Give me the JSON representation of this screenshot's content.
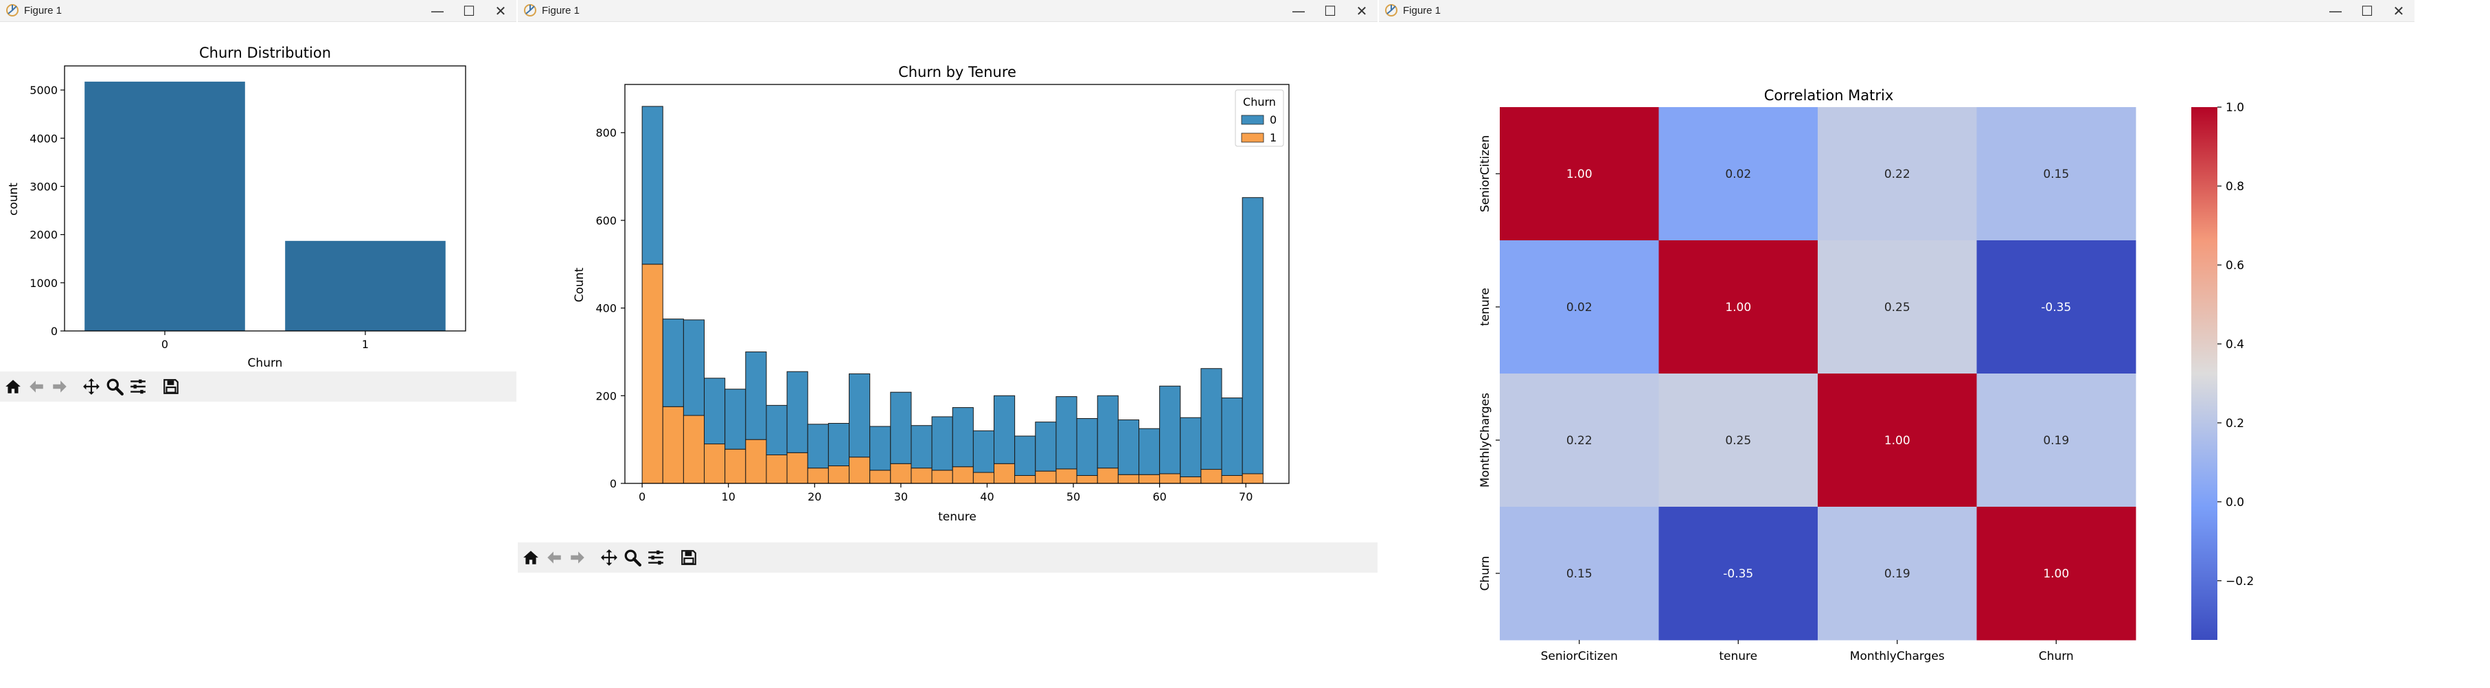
{
  "windows": [
    {
      "title": "Figure 1",
      "controls": {
        "minimize": "—",
        "maximize": "☐",
        "close": "✕"
      }
    },
    {
      "title": "Figure 1",
      "controls": {
        "minimize": "—",
        "maximize": "☐",
        "close": "✕"
      }
    },
    {
      "title": "Figure 1",
      "controls": {
        "minimize": "—",
        "maximize": "☐",
        "close": "✕"
      }
    }
  ],
  "toolbar_icons": [
    "home-icon",
    "back-arrow-icon",
    "forward-arrow-icon",
    "pan-icon",
    "zoom-icon",
    "configure-subplots-icon",
    "save-icon"
  ],
  "colors": {
    "bar_blue": "#2e6f9d",
    "hist_blue": "#3f8fbf",
    "hist_orange": "#f8a04c"
  },
  "chart_data": [
    {
      "type": "bar",
      "title": "Churn Distribution",
      "xlabel": "Churn",
      "ylabel": "count",
      "categories": [
        "0",
        "1"
      ],
      "values": [
        5174,
        1869
      ],
      "ylim": [
        0,
        5500
      ],
      "yticks": [
        0,
        1000,
        2000,
        3000,
        4000,
        5000
      ]
    },
    {
      "type": "bar",
      "stacked": true,
      "title": "Churn by Tenure",
      "xlabel": "tenure",
      "ylabel": "Count",
      "legend_title": "Churn",
      "legend_position": "top-right",
      "xlim": [
        -2,
        75
      ],
      "ylim": [
        0,
        910
      ],
      "xticks": [
        0,
        10,
        20,
        30,
        40,
        50,
        60,
        70
      ],
      "yticks": [
        0,
        200,
        400,
        600,
        800
      ],
      "bin_start": 0,
      "bin_width": 2.4,
      "series": [
        {
          "name": "1",
          "values": [
            500,
            175,
            155,
            90,
            78,
            100,
            65,
            70,
            35,
            40,
            60,
            30,
            45,
            35,
            30,
            38,
            25,
            45,
            18,
            28,
            33,
            18,
            35,
            20,
            20,
            22,
            15,
            32,
            18,
            22
          ]
        },
        {
          "name": "0",
          "values": [
            360,
            200,
            218,
            150,
            137,
            200,
            113,
            185,
            100,
            97,
            190,
            100,
            163,
            97,
            122,
            135,
            95,
            155,
            90,
            112,
            165,
            130,
            165,
            125,
            105,
            200,
            135,
            230,
            177,
            630
          ]
        }
      ]
    },
    {
      "type": "heatmap",
      "title": "Correlation Matrix",
      "xlabels": [
        "SeniorCitizen",
        "tenure",
        "MonthlyCharges",
        "Churn"
      ],
      "ylabels": [
        "SeniorCitizen",
        "tenure",
        "MonthlyCharges",
        "Churn"
      ],
      "values": [
        [
          1.0,
          0.02,
          0.22,
          0.15
        ],
        [
          0.02,
          1.0,
          0.25,
          -0.35
        ],
        [
          0.22,
          0.25,
          1.0,
          0.19
        ],
        [
          0.15,
          -0.35,
          0.19,
          1.0
        ]
      ],
      "labels": [
        [
          "1.00",
          "0.02",
          "0.22",
          "0.15"
        ],
        [
          "0.02",
          "1.00",
          "0.25",
          "-0.35"
        ],
        [
          "0.22",
          "0.25",
          "1.00",
          "0.19"
        ],
        [
          "0.15",
          "-0.35",
          "0.19",
          "1.00"
        ]
      ],
      "colormap": "coolwarm",
      "vmin": -0.35,
      "vmax": 1.0,
      "colorbar_ticks": [
        1.0,
        0.8,
        0.6,
        0.4,
        0.2,
        0.0,
        -0.2
      ],
      "colorbar_labels": [
        "1.0",
        "0.8",
        "0.6",
        "0.4",
        "0.2",
        "0.0",
        "−0.2"
      ]
    }
  ]
}
